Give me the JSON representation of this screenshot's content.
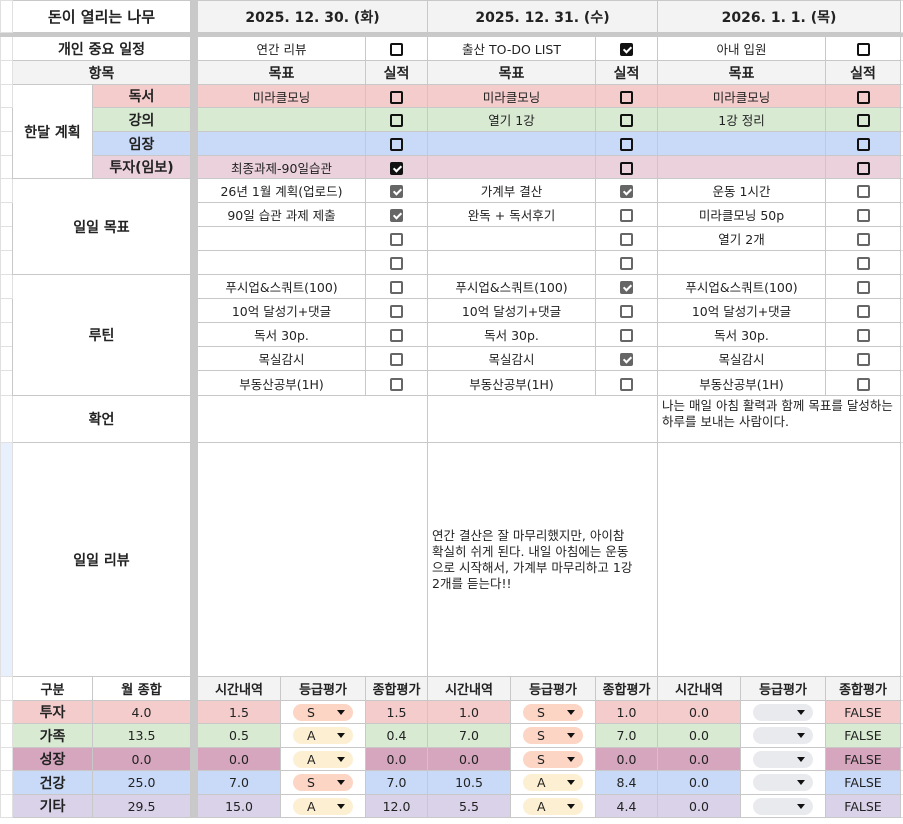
{
  "title": "돈이 열리는 나무",
  "labels": {
    "important": "개인 중요 일정",
    "item": "항목",
    "monthly_plan": "한달 계획",
    "monthly_subs": [
      "독서",
      "강의",
      "임장",
      "투자(임보)"
    ],
    "daily_goals": "일일 목표",
    "routine": "루틴",
    "affirmation": "확언",
    "daily_review": "일일 리뷰",
    "goal": "목표",
    "result": "실적"
  },
  "days": [
    {
      "date": "2025. 12. 30. (화)",
      "important": {
        "text": "연간 리뷰",
        "checked": false
      },
      "monthly": [
        {
          "text": "미라클모닝",
          "checked": false
        },
        {
          "text": "",
          "checked": false
        },
        {
          "text": "",
          "checked": false
        },
        {
          "text": "최종과제-90일습관",
          "checked": true
        }
      ],
      "goals": [
        {
          "text": "26년 1월 계획(업로드)",
          "checked": true
        },
        {
          "text": "90일 습관 과제 제출",
          "checked": true
        },
        {
          "text": "",
          "checked": false
        },
        {
          "text": "",
          "checked": false
        }
      ],
      "routine": [
        {
          "text": "푸시업&스쿼트(100)",
          "checked": false
        },
        {
          "text": "10억 달성기+댓글",
          "checked": false
        },
        {
          "text": "독서 30p.",
          "checked": false
        },
        {
          "text": "목실감시",
          "checked": false
        },
        {
          "text": "부동산공부(1H)",
          "checked": false
        }
      ],
      "affirmation": "",
      "review": ""
    },
    {
      "date": "2025. 12. 31. (수)",
      "important": {
        "text": "출산 TO-DO LIST",
        "checked": true
      },
      "monthly": [
        {
          "text": "미라클모닝",
          "checked": false
        },
        {
          "text": "열기 1강",
          "checked": false
        },
        {
          "text": "",
          "checked": false
        },
        {
          "text": "",
          "checked": false
        }
      ],
      "goals": [
        {
          "text": "가계부 결산",
          "checked": true
        },
        {
          "text": "완독 + 독서후기",
          "checked": false
        },
        {
          "text": "",
          "checked": false
        },
        {
          "text": "",
          "checked": false
        }
      ],
      "routine": [
        {
          "text": "푸시업&스쿼트(100)",
          "checked": true
        },
        {
          "text": "10억 달성기+댓글",
          "checked": false
        },
        {
          "text": "독서 30p.",
          "checked": false
        },
        {
          "text": "목실감시",
          "checked": true
        },
        {
          "text": "부동산공부(1H)",
          "checked": false
        }
      ],
      "affirmation": "",
      "review": "연간 결산은 잘 마무리했지만, 아이참 확실히 쉬게 된다. 내일 아침에는 운동으로 시작해서, 가계부 마무리하고 1강 2개를 듣는다!!"
    },
    {
      "date": "2026. 1. 1. (목)",
      "important": {
        "text": "아내 입원",
        "checked": false
      },
      "monthly": [
        {
          "text": "미라클모닝",
          "checked": false
        },
        {
          "text": "1강 정리",
          "checked": false
        },
        {
          "text": "",
          "checked": false
        },
        {
          "text": "",
          "checked": false
        }
      ],
      "goals": [
        {
          "text": "운동 1시간",
          "checked": false
        },
        {
          "text": "미라클모닝 50p",
          "checked": false
        },
        {
          "text": "열기 2개",
          "checked": false
        },
        {
          "text": "",
          "checked": false
        }
      ],
      "routine": [
        {
          "text": "푸시업&스쿼트(100)",
          "checked": false
        },
        {
          "text": "10억 달성기+댓글",
          "checked": false
        },
        {
          "text": "독서 30p.",
          "checked": false
        },
        {
          "text": "목실감시",
          "checked": false
        },
        {
          "text": "부동산공부(1H)",
          "checked": false
        }
      ],
      "affirmation": "나는 매일 아침 활력과 함께 목표를 달성하는 하루를 보내는 사람이다.",
      "review": ""
    }
  ],
  "summary": {
    "headers": {
      "category": "구분",
      "month_total": "월 종합",
      "time": "시간내역",
      "grade": "등급평가",
      "score": "종합평가"
    },
    "rows": [
      {
        "category": "투자",
        "month_total": "4.0",
        "days": [
          {
            "time": "1.5",
            "grade": "S",
            "score": "1.5"
          },
          {
            "time": "1.0",
            "grade": "S",
            "score": "1.0"
          },
          {
            "time": "0.0",
            "grade": "",
            "score": "FALSE"
          }
        ]
      },
      {
        "category": "가족",
        "month_total": "13.5",
        "days": [
          {
            "time": "0.5",
            "grade": "A",
            "score": "0.4"
          },
          {
            "time": "7.0",
            "grade": "S",
            "score": "7.0"
          },
          {
            "time": "0.0",
            "grade": "",
            "score": "FALSE"
          }
        ]
      },
      {
        "category": "성장",
        "month_total": "0.0",
        "days": [
          {
            "time": "0.0",
            "grade": "A",
            "score": "0.0"
          },
          {
            "time": "0.0",
            "grade": "S",
            "score": "0.0"
          },
          {
            "time": "0.0",
            "grade": "",
            "score": "FALSE"
          }
        ]
      },
      {
        "category": "건강",
        "month_total": "25.0",
        "days": [
          {
            "time": "7.0",
            "grade": "S",
            "score": "7.0"
          },
          {
            "time": "10.5",
            "grade": "A",
            "score": "8.4"
          },
          {
            "time": "0.0",
            "grade": "",
            "score": "FALSE"
          }
        ]
      },
      {
        "category": "기타",
        "month_total": "29.5",
        "days": [
          {
            "time": "15.0",
            "grade": "A",
            "score": "12.0"
          },
          {
            "time": "5.5",
            "grade": "A",
            "score": "4.4"
          },
          {
            "time": "0.0",
            "grade": "",
            "score": "FALSE"
          }
        ]
      }
    ]
  },
  "colors": {
    "pink": "#f4cccc",
    "green": "#d9ead3",
    "blue": "#c9daf8",
    "mauve": "#ead1dc",
    "rose": "#d5a6bd",
    "lavender": "#d9d2e9",
    "header": "#f3f3f3"
  }
}
